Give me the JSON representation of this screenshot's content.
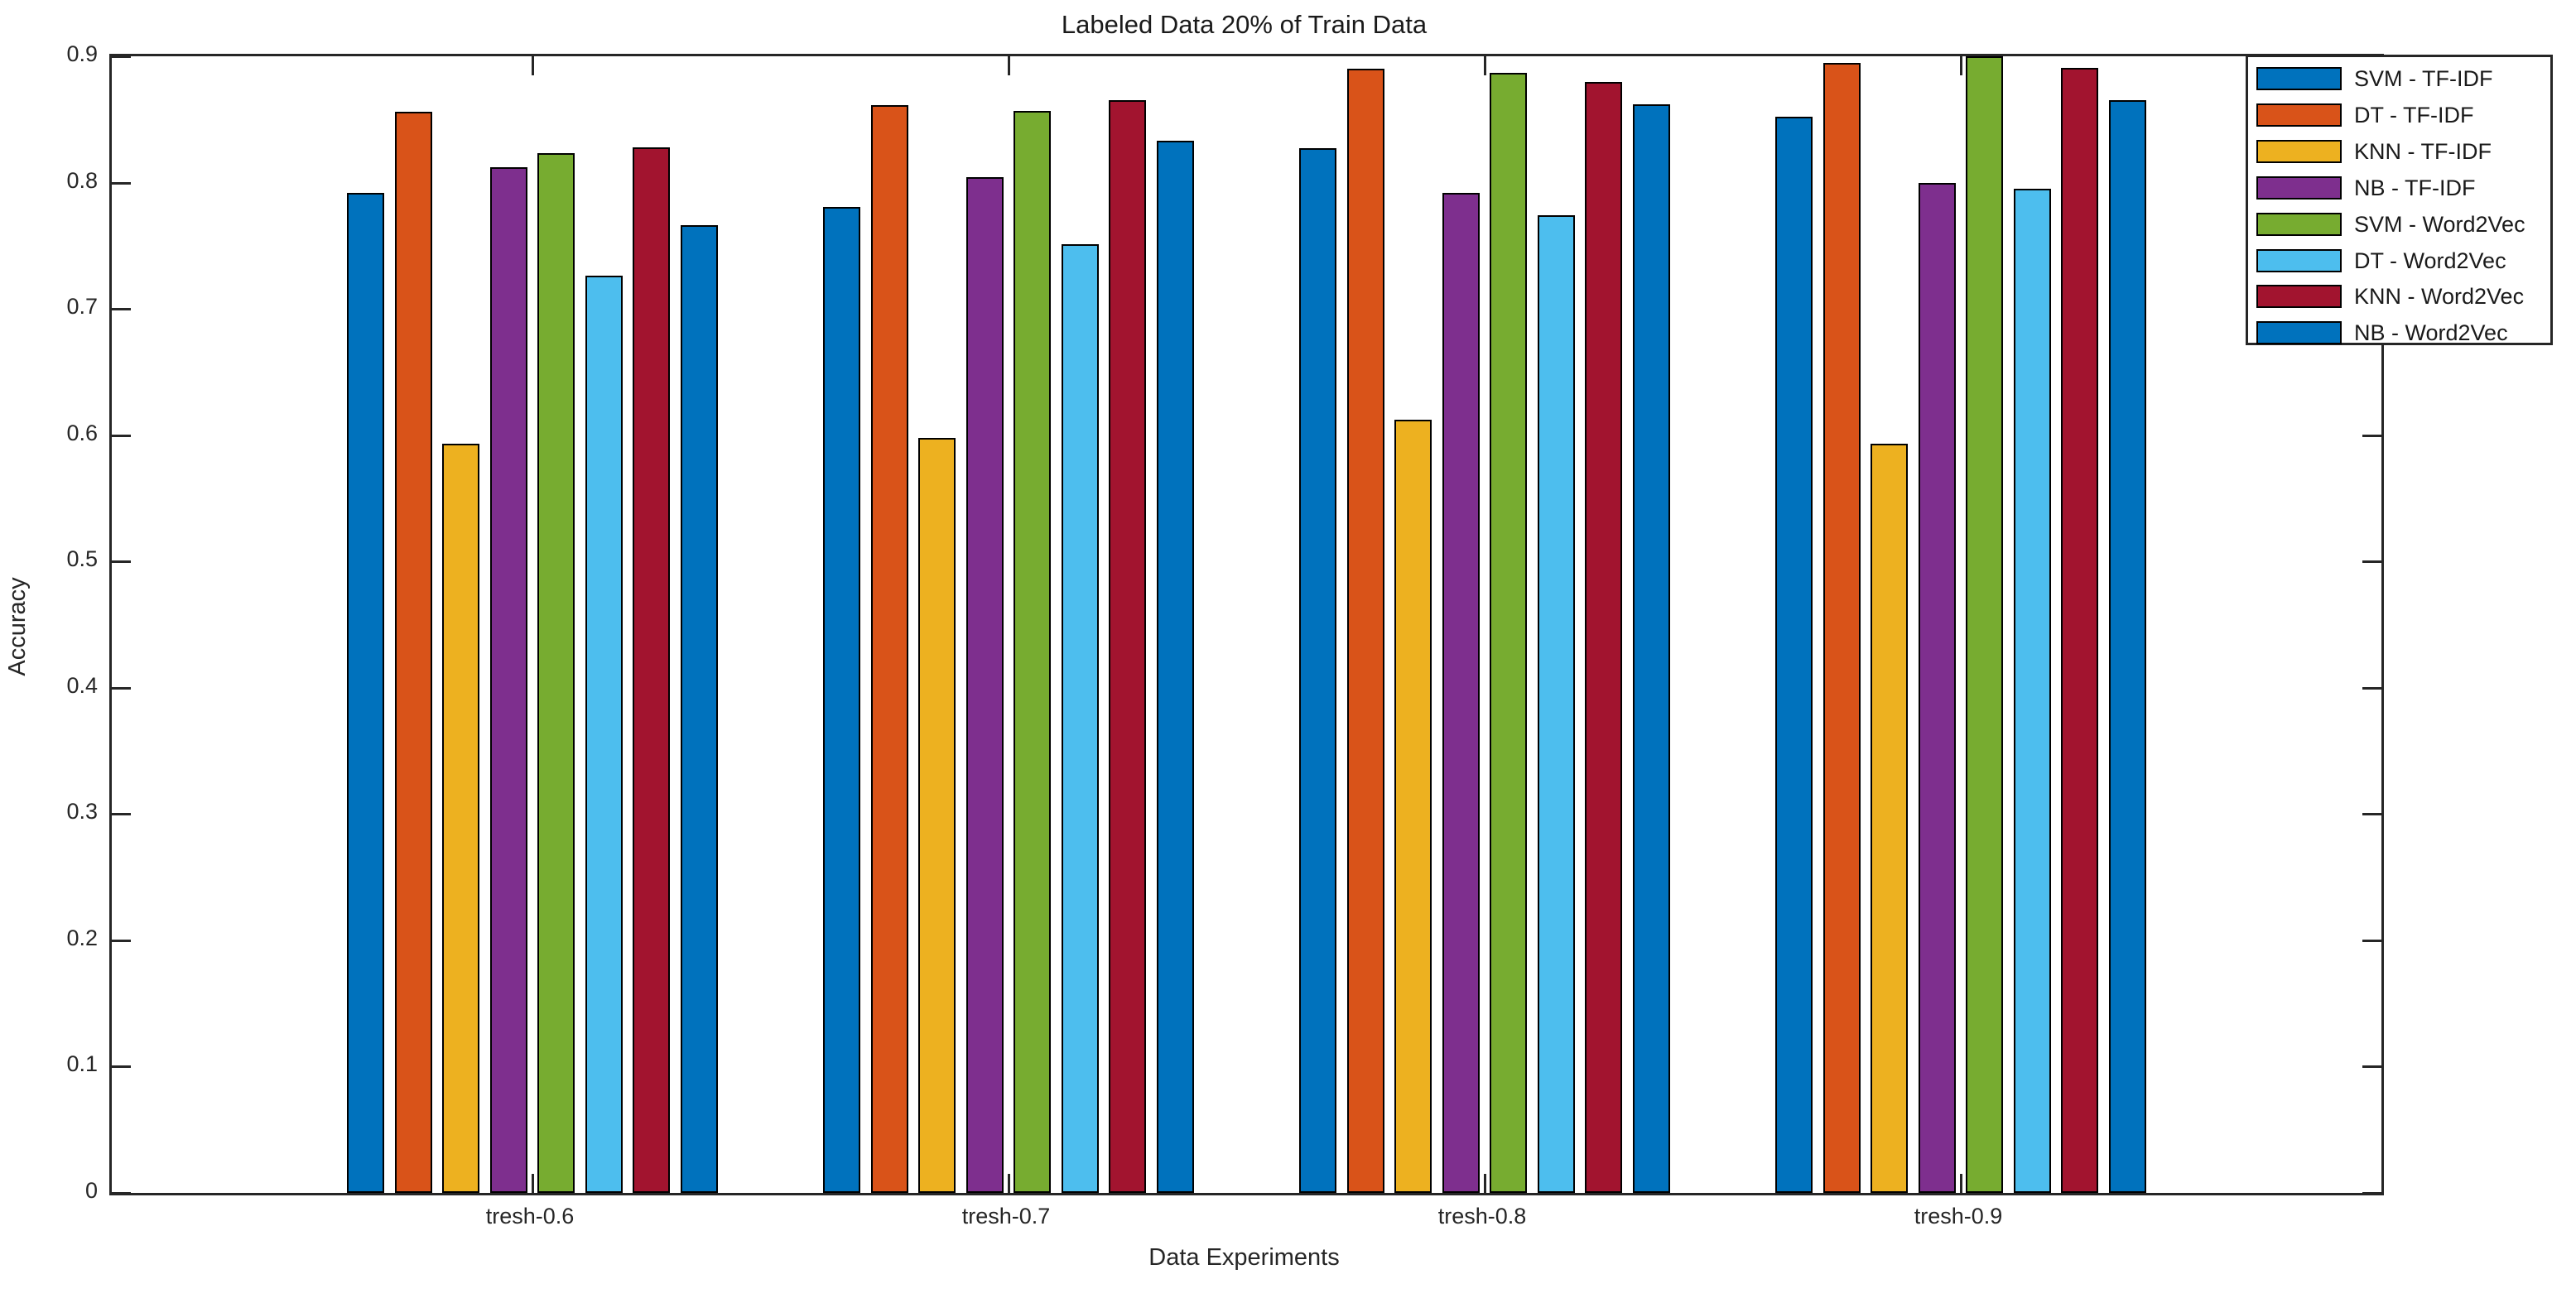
{
  "chart_data": {
    "type": "bar",
    "title": "Labeled Data 20% of Train Data",
    "xlabel": "Data Experiments",
    "ylabel": "Accuracy",
    "categories": [
      "tresh-0.6",
      "tresh-0.7",
      "tresh-0.8",
      "tresh-0.9"
    ],
    "series": [
      {
        "name": "SVM - TF-IDF",
        "color": "#0072BD",
        "values": [
          0.792,
          0.781,
          0.827,
          0.852
        ]
      },
      {
        "name": "DT - TF-IDF",
        "color": "#D95319",
        "values": [
          0.856,
          0.861,
          0.89,
          0.895
        ]
      },
      {
        "name": "KNN - TF-IDF",
        "color": "#EDB120",
        "values": [
          0.593,
          0.598,
          0.612,
          0.593
        ]
      },
      {
        "name": "NB - TF-IDF",
        "color": "#7E2F8E",
        "values": [
          0.812,
          0.804,
          0.792,
          0.8
        ]
      },
      {
        "name": "SVM - Word2Vec",
        "color": "#77AC30",
        "values": [
          0.823,
          0.857,
          0.887,
          0.9
        ]
      },
      {
        "name": "DT - Word2Vec",
        "color": "#4DBEEE",
        "values": [
          0.726,
          0.751,
          0.774,
          0.795
        ]
      },
      {
        "name": "KNN - Word2Vec",
        "color": "#A2142F",
        "values": [
          0.828,
          0.865,
          0.88,
          0.891
        ]
      },
      {
        "name": "NB - Word2Vec",
        "color": "#0072BD",
        "values": [
          0.766,
          0.833,
          0.862,
          0.865
        ]
      }
    ],
    "ylim": [
      0,
      0.9
    ],
    "yticks": [
      "0",
      "0.1",
      "0.2",
      "0.3",
      "0.4",
      "0.5",
      "0.6",
      "0.7",
      "0.8",
      "0.9"
    ],
    "legend_position": "northeast",
    "grid": false,
    "bar_edge_color": "#000000",
    "axis_color": "#262626",
    "background_color": "#ffffff"
  }
}
